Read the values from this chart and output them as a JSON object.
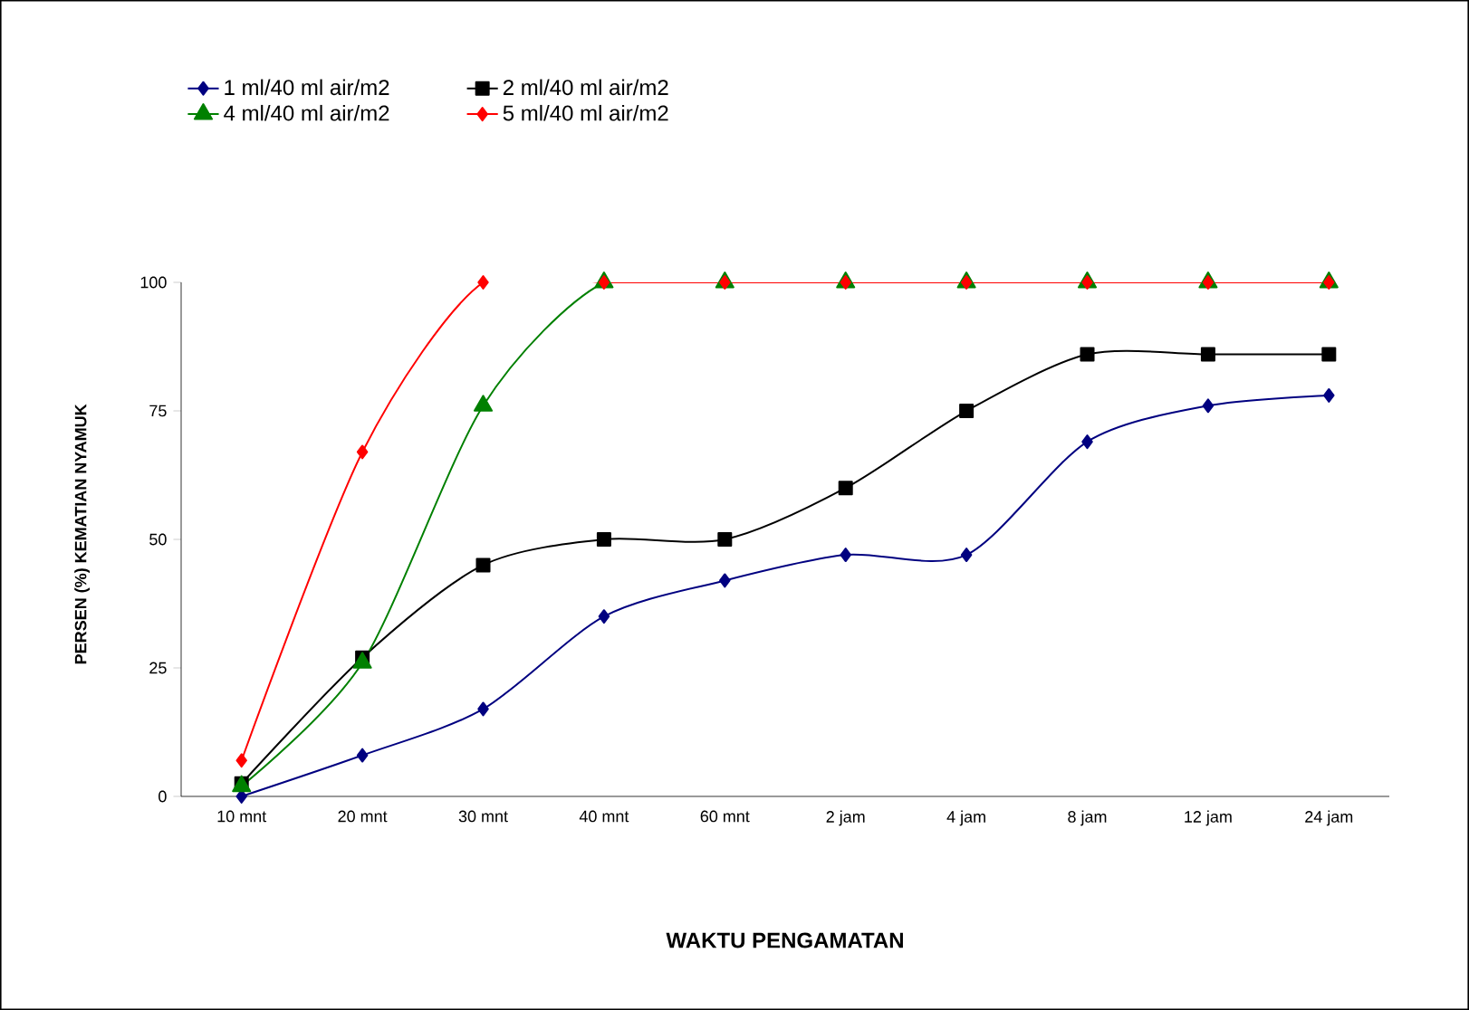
{
  "chart_data": {
    "type": "line",
    "xlabel": "WAKTU PENGAMATAN",
    "ylabel": "PERSEN (%) KEMATIAN NYAMUK",
    "categories": [
      "10 mnt",
      "20 mnt",
      "30 mnt",
      "40 mnt",
      "60 mnt",
      "2 jam",
      "4 jam",
      "8 jam",
      "12 jam",
      "24 jam"
    ],
    "series": [
      {
        "name": "1 ml/40 ml air/m2",
        "color": "#000080",
        "marker": "diamond",
        "values": [
          0,
          8,
          17,
          35,
          42,
          47,
          47,
          69,
          76,
          78
        ]
      },
      {
        "name": "2 ml/40 ml air/m2",
        "color": "#000000",
        "marker": "square",
        "values": [
          2.5,
          27,
          45,
          50,
          50,
          60,
          75,
          86,
          86,
          86
        ]
      },
      {
        "name": "4 ml/40 ml air/m2",
        "color": "#008000",
        "marker": "triangle",
        "values": [
          2,
          26,
          76,
          100,
          100,
          100,
          100,
          100,
          100,
          100
        ]
      },
      {
        "name": "5 ml/40 ml air/m2",
        "color": "#ff0000",
        "marker": "diamond",
        "values": [
          7,
          67,
          100,
          100,
          100,
          100,
          100,
          100,
          100,
          100
        ]
      }
    ],
    "ylim": [
      0,
      100
    ],
    "yticks": [
      0,
      25,
      50,
      75,
      100
    ],
    "legend": "top"
  }
}
